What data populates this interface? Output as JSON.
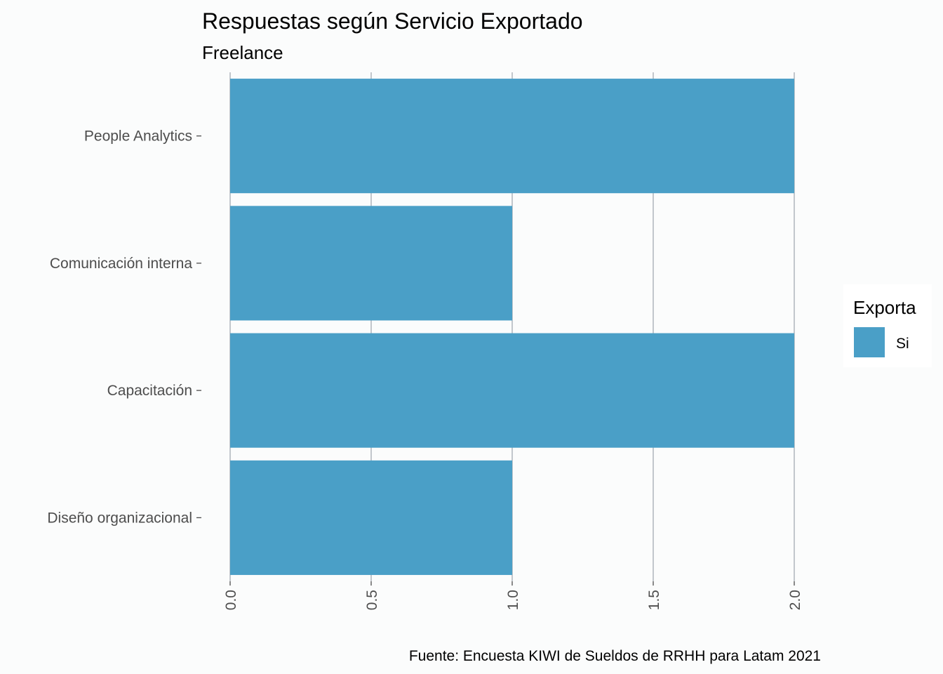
{
  "chart_data": {
    "type": "bar",
    "orientation": "horizontal",
    "title": "Respuestas según Servicio Exportado",
    "subtitle": "Freelance",
    "caption": "Fuente: Encuesta KIWI de Sueldos de RRHH para Latam 2021",
    "categories": [
      "People Analytics",
      "Comunicación interna",
      "Capacitación",
      "Diseño organizacional"
    ],
    "series": [
      {
        "name": "Si",
        "values": [
          2,
          1,
          2,
          1
        ],
        "color": "#4a9fc7"
      }
    ],
    "xlabel": "",
    "ylabel": "",
    "xlim": [
      0,
      2
    ],
    "x_ticks": [
      "0.0",
      "0.5",
      "1.0",
      "1.5",
      "2.0"
    ],
    "grid": true,
    "legend": {
      "title": "Exporta",
      "position": "right"
    }
  }
}
